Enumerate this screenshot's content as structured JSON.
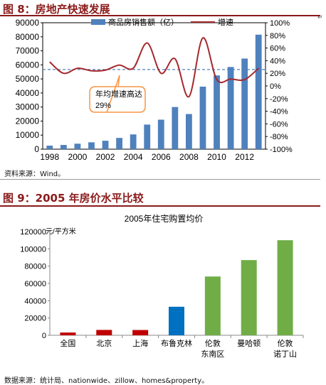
{
  "figure8": {
    "title": "图 8：房地产快速发展",
    "source": "资料来源：Wind。"
  },
  "figure9": {
    "title": "图 9：2005 年房价水平比较",
    "source": "数据来源：统计局、nationwide、zillow、homes&property。"
  },
  "chart_data": [
    {
      "type": "bar",
      "title": "",
      "x": [
        1998,
        1999,
        2000,
        2001,
        2002,
        2003,
        2004,
        2005,
        2006,
        2007,
        2008,
        2009,
        2010,
        2011,
        2012,
        2013
      ],
      "xticks": [
        "1998",
        "2000",
        "2002",
        "2004",
        "2006",
        "2008",
        "2010",
        "2012"
      ],
      "series": [
        {
          "name": "商品房销售额（亿）",
          "type": "bar",
          "axis": "left",
          "color": "#4f81bd",
          "values": [
            2500,
            3000,
            3900,
            4900,
            6000,
            8000,
            10500,
            17500,
            21000,
            30000,
            25000,
            44500,
            52500,
            58500,
            64500,
            81500
          ]
        },
        {
          "name": "增速",
          "type": "line",
          "axis": "right",
          "color": "#a5292d",
          "values": [
            38,
            20,
            28,
            24,
            25,
            33,
            28,
            68,
            20,
            43,
            -17,
            76,
            10,
            11,
            10,
            28
          ]
        }
      ],
      "reference_line": {
        "axis": "right",
        "value": 26,
        "style": "dashed",
        "color": "#4f81bd"
      },
      "annotation": "年均增速高达29%",
      "ylim_left": [
        0,
        90000
      ],
      "yticks_left": [
        "0",
        "10000",
        "20000",
        "30000",
        "40000",
        "50000",
        "60000",
        "70000",
        "80000",
        "90000"
      ],
      "ylim_right": [
        -100,
        100
      ],
      "yticks_right": [
        "-100%",
        "-80%",
        "-60%",
        "-40%",
        "-20%",
        "0%",
        "20%",
        "40%",
        "60%",
        "80%",
        "100%"
      ],
      "legend": "top"
    },
    {
      "type": "bar",
      "title": "2005年住宅购置均价",
      "ylabel": "元/平方米",
      "categories": [
        "全国",
        "北京",
        "上海",
        "布鲁克林",
        "伦敦东南区",
        "曼哈顿",
        "伦敦诺丁山"
      ],
      "category_lines": [
        [
          "全国"
        ],
        [
          "北京"
        ],
        [
          "上海"
        ],
        [
          "布鲁克林"
        ],
        [
          "伦敦",
          "东南区"
        ],
        [
          "曼哈顿"
        ],
        [
          "伦敦",
          "诺丁山"
        ]
      ],
      "values": [
        3200,
        6200,
        6100,
        33000,
        68000,
        87000,
        110000
      ],
      "colors": [
        "#c00000",
        "#c00000",
        "#c00000",
        "#0070c0",
        "#70ad47",
        "#70ad47",
        "#70ad47"
      ],
      "ylim": [
        0,
        120000
      ],
      "yticks": [
        "0",
        "20000",
        "40000",
        "60000",
        "80000",
        "100000",
        "120000"
      ],
      "grid": false
    }
  ]
}
